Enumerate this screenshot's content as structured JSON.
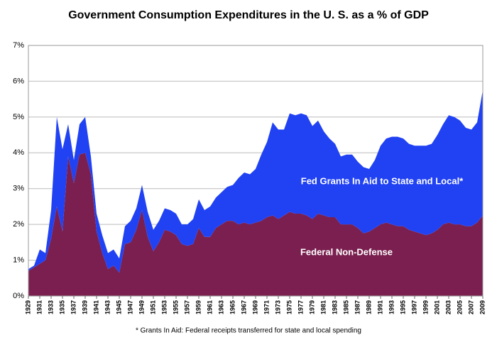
{
  "chart_data": {
    "type": "stacked_area",
    "title": "Government Consumption Expenditures in the U. S. as a % of GDP",
    "note": "* Grants In Aid: Federal receipts transferred for state and local spending",
    "x": [
      1929,
      1930,
      1931,
      1932,
      1933,
      1934,
      1935,
      1936,
      1937,
      1938,
      1939,
      1940,
      1941,
      1942,
      1943,
      1944,
      1945,
      1946,
      1947,
      1948,
      1949,
      1950,
      1951,
      1952,
      1953,
      1954,
      1955,
      1956,
      1957,
      1958,
      1959,
      1960,
      1961,
      1962,
      1963,
      1964,
      1965,
      1966,
      1967,
      1968,
      1969,
      1970,
      1971,
      1972,
      1973,
      1974,
      1975,
      1976,
      1977,
      1978,
      1979,
      1980,
      1981,
      1982,
      1983,
      1984,
      1985,
      1986,
      1987,
      1988,
      1989,
      1990,
      1991,
      1992,
      1993,
      1994,
      1995,
      1996,
      1997,
      1998,
      1999,
      2000,
      2001,
      2002,
      2003,
      2004,
      2005,
      2006,
      2007,
      2008,
      2009
    ],
    "series": [
      {
        "name": "Federal Non-Defense",
        "color": "#7a1f4f",
        "values": [
          0.7,
          0.8,
          0.9,
          1.0,
          1.6,
          2.5,
          1.8,
          3.9,
          3.15,
          3.95,
          4.0,
          3.4,
          1.8,
          1.2,
          0.75,
          0.85,
          0.65,
          1.45,
          1.5,
          1.85,
          2.4,
          1.65,
          1.25,
          1.5,
          1.85,
          1.8,
          1.7,
          1.45,
          1.4,
          1.45,
          1.9,
          1.65,
          1.65,
          1.9,
          2.0,
          2.1,
          2.1,
          2.0,
          2.05,
          2.0,
          2.05,
          2.1,
          2.2,
          2.25,
          2.15,
          2.25,
          2.35,
          2.3,
          2.3,
          2.25,
          2.15,
          2.3,
          2.25,
          2.2,
          2.2,
          2.0,
          2.0,
          2.0,
          1.9,
          1.75,
          1.8,
          1.9,
          2.0,
          2.05,
          2.0,
          1.95,
          1.95,
          1.85,
          1.8,
          1.75,
          1.7,
          1.75,
          1.85,
          2.0,
          2.05,
          2.0,
          2.0,
          1.95,
          1.95,
          2.05,
          2.25
        ]
      },
      {
        "name": "Fed Grants In Aid to State and Local*",
        "color": "#2142f3",
        "values": [
          0.05,
          0.05,
          0.4,
          0.2,
          0.8,
          2.5,
          2.3,
          0.9,
          0.65,
          0.85,
          1.0,
          0.5,
          0.5,
          0.5,
          0.45,
          0.45,
          0.4,
          0.5,
          0.6,
          0.6,
          0.7,
          0.7,
          0.6,
          0.6,
          0.6,
          0.6,
          0.6,
          0.55,
          0.6,
          0.7,
          0.8,
          0.75,
          0.85,
          0.85,
          0.9,
          0.95,
          1.0,
          1.3,
          1.4,
          1.4,
          1.5,
          1.85,
          2.1,
          2.6,
          2.5,
          2.4,
          2.75,
          2.75,
          2.8,
          2.8,
          2.6,
          2.6,
          2.35,
          2.2,
          2.05,
          1.9,
          1.95,
          1.95,
          1.85,
          1.85,
          1.75,
          1.9,
          2.2,
          2.35,
          2.45,
          2.5,
          2.45,
          2.4,
          2.4,
          2.45,
          2.5,
          2.5,
          2.65,
          2.8,
          3.0,
          3.0,
          2.9,
          2.75,
          2.7,
          2.8,
          3.5
        ]
      }
    ],
    "xlim": [
      1929,
      2009
    ],
    "xticks": [
      1929,
      1931,
      1933,
      1935,
      1937,
      1939,
      1941,
      1943,
      1945,
      1947,
      1949,
      1951,
      1953,
      1955,
      1957,
      1959,
      1961,
      1963,
      1965,
      1967,
      1969,
      1971,
      1973,
      1975,
      1977,
      1979,
      1981,
      1983,
      1985,
      1987,
      1989,
      1991,
      1993,
      1995,
      1997,
      1999,
      2001,
      2003,
      2005,
      2007,
      2009
    ],
    "ylim": [
      0,
      7
    ],
    "yticks": [
      {
        "value": 0,
        "label": "0%"
      },
      {
        "value": 1,
        "label": "1%"
      },
      {
        "value": 2,
        "label": "2%"
      },
      {
        "value": 3,
        "label": "3%"
      },
      {
        "value": 4,
        "label": "4%"
      },
      {
        "value": 5,
        "label": "5%"
      },
      {
        "value": 6,
        "label": "6%"
      },
      {
        "value": 7,
        "label": "7%"
      }
    ],
    "grid": true
  }
}
